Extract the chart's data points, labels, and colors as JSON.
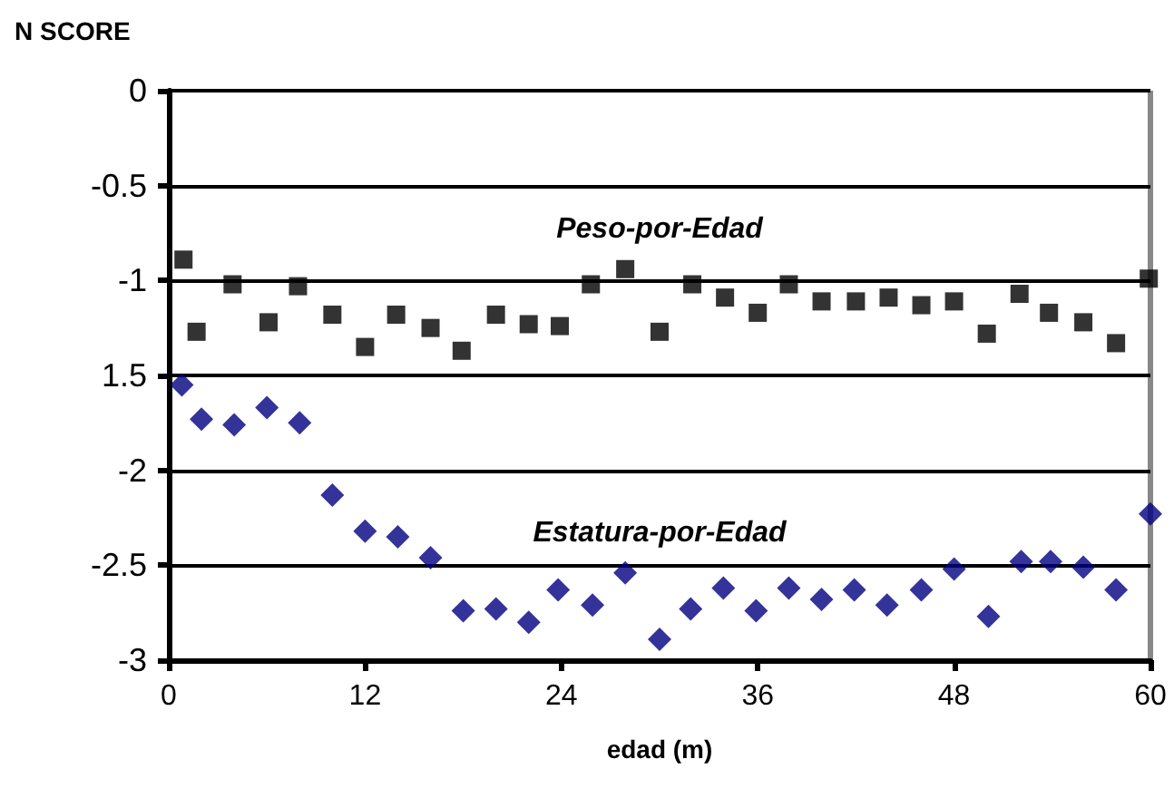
{
  "chart_data": {
    "type": "scatter",
    "ylabel": "N SCORE",
    "xlabel": "edad (m)",
    "xlim": [
      0,
      60
    ],
    "xticks": [
      0,
      12,
      24,
      36,
      48,
      60
    ],
    "ylim": [
      -3,
      0
    ],
    "yticks": [
      -3,
      -2.5,
      -2,
      {
        "value": -1.5,
        "label": "1.5"
      },
      -1,
      -0.5,
      0
    ],
    "grid": "y",
    "series": [
      {
        "name": "Peso-por-Edad",
        "color": "#000000",
        "marker": "square",
        "x": [
          0.9,
          1.7,
          3.9,
          6.1,
          7.9,
          10,
          12,
          13.9,
          16,
          17.9,
          20,
          22,
          23.9,
          25.8,
          27.9,
          30,
          32,
          34,
          36,
          37.9,
          39.9,
          42,
          44,
          46,
          48,
          50,
          52,
          53.8,
          55.9,
          57.9,
          59.9
        ],
        "values": [
          -0.89,
          -1.27,
          -1.02,
          -1.22,
          -1.03,
          -1.18,
          -1.35,
          -1.18,
          -1.25,
          -1.37,
          -1.18,
          -1.23,
          -1.24,
          -1.02,
          -0.94,
          -1.27,
          -1.02,
          -1.09,
          -1.17,
          -1.02,
          -1.11,
          -1.11,
          -1.09,
          -1.13,
          -1.11,
          -1.28,
          -1.07,
          -1.17,
          -1.22,
          -1.33,
          -0.99
        ]
      },
      {
        "name": "Estatura-por-Edad",
        "color": "#000080",
        "marker": "diamond",
        "x": [
          0.8,
          2,
          4,
          6,
          8,
          10,
          12,
          14,
          16,
          18,
          20,
          22,
          23.8,
          25.9,
          27.9,
          30,
          31.9,
          33.9,
          35.9,
          37.9,
          39.9,
          41.9,
          43.9,
          46,
          48,
          50.1,
          52.1,
          53.9,
          55.9,
          57.9,
          60
        ],
        "values": [
          -1.55,
          -1.73,
          -1.76,
          -1.67,
          -1.75,
          -2.13,
          -2.32,
          -2.35,
          -2.46,
          -2.74,
          -2.73,
          -2.8,
          -2.63,
          -2.71,
          -2.54,
          -2.89,
          -2.73,
          -2.62,
          -2.74,
          -2.62,
          -2.68,
          -2.63,
          -2.71,
          -2.63,
          -2.52,
          -2.77,
          -2.48,
          -2.48,
          -2.51,
          -2.63,
          -2.23
        ]
      }
    ]
  }
}
